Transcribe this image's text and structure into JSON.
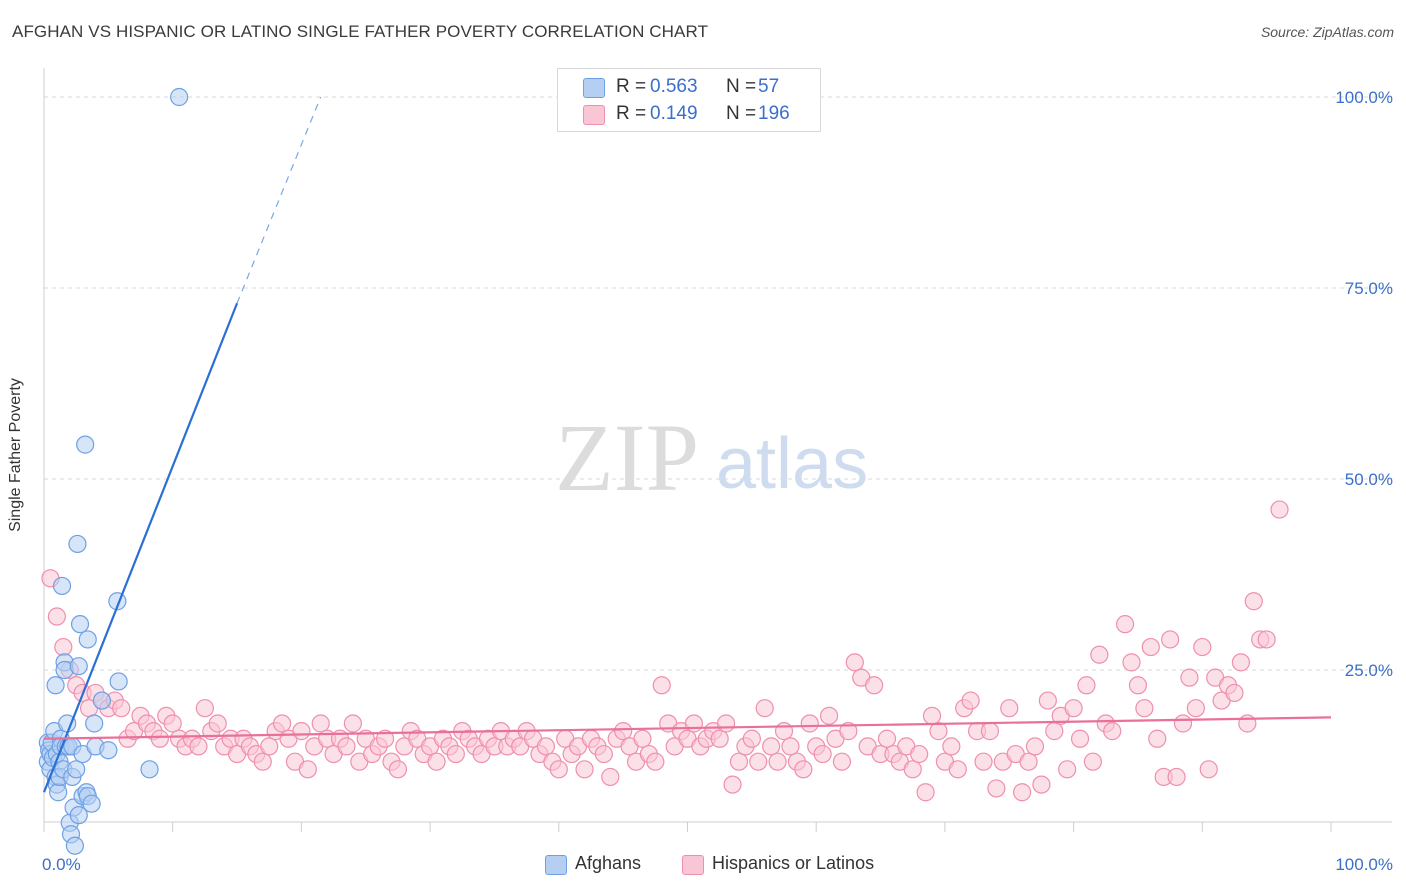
{
  "title": "AFGHAN VS HISPANIC OR LATINO SINGLE FATHER POVERTY CORRELATION CHART",
  "source": "Source: ZipAtlas.com",
  "watermark": {
    "zip": "ZIP",
    "atlas": "atlas"
  },
  "legend": {
    "r_label": "R =",
    "n_label": "N =",
    "series": [
      {
        "name": "Afghans",
        "r": "0.563",
        "n": "57",
        "color": "#6fa0e4",
        "fill": "#b5cff3"
      },
      {
        "name": "Hispanics or Latinos",
        "r": "0.149",
        "n": "196",
        "color": "#ef8fae",
        "fill": "#f9c6d6"
      }
    ]
  },
  "chart_data": {
    "type": "scatter",
    "title": "AFGHAN VS HISPANIC OR LATINO SINGLE FATHER POVERTY CORRELATION CHART",
    "xlabel": "",
    "ylabel": "Single Father Poverty",
    "xlim": [
      0,
      100
    ],
    "ylim": [
      0,
      102
    ],
    "x_tick_labels": [
      "0.0%",
      "100.0%"
    ],
    "y_ticks": [
      25,
      50,
      75,
      100
    ],
    "y_tick_labels": [
      "25.0%",
      "50.0%",
      "75.0%",
      "100.0%"
    ],
    "grid": true,
    "series": [
      {
        "name": "Afghans",
        "points": [
          [
            0.3,
            15.5
          ],
          [
            0.3,
            13
          ],
          [
            0.4,
            14.5
          ],
          [
            0.5,
            12
          ],
          [
            0.5,
            14
          ],
          [
            0.6,
            15.5
          ],
          [
            0.7,
            13.5
          ],
          [
            0.8,
            17
          ],
          [
            0.9,
            23
          ],
          [
            0.9,
            11
          ],
          [
            1.0,
            14
          ],
          [
            1.0,
            10
          ],
          [
            1.1,
            9
          ],
          [
            1.2,
            13
          ],
          [
            1.2,
            11
          ],
          [
            1.3,
            16
          ],
          [
            1.3,
            15
          ],
          [
            1.4,
            36
          ],
          [
            1.5,
            12
          ],
          [
            1.6,
            26
          ],
          [
            1.6,
            25
          ],
          [
            1.7,
            15
          ],
          [
            1.8,
            18
          ],
          [
            1.9,
            15
          ],
          [
            2.0,
            5
          ],
          [
            2.1,
            3.5
          ],
          [
            2.2,
            15
          ],
          [
            2.2,
            11
          ],
          [
            2.3,
            7
          ],
          [
            2.4,
            2
          ],
          [
            2.5,
            12
          ],
          [
            2.6,
            41.5
          ],
          [
            2.7,
            25.5
          ],
          [
            2.7,
            6
          ],
          [
            2.8,
            31
          ],
          [
            3.0,
            14
          ],
          [
            3.0,
            8.5
          ],
          [
            3.2,
            54.5
          ],
          [
            3.3,
            9
          ],
          [
            3.4,
            8.5
          ],
          [
            3.4,
            29
          ],
          [
            3.7,
            7.5
          ],
          [
            3.9,
            18
          ],
          [
            4.0,
            15
          ],
          [
            4.5,
            21
          ],
          [
            5.0,
            14.5
          ],
          [
            5.7,
            34
          ],
          [
            5.8,
            23.5
          ],
          [
            8.2,
            12
          ],
          [
            10.5,
            100
          ]
        ],
        "trend": {
          "x0": 0,
          "y0": 9,
          "x1": 15,
          "y1": 73,
          "dashed_to": [
            21.5,
            100
          ]
        }
      },
      {
        "name": "Hispanics or Latinos",
        "points": [
          [
            0.5,
            37
          ],
          [
            1,
            32
          ],
          [
            1.5,
            28
          ],
          [
            2,
            25
          ],
          [
            2.5,
            23
          ],
          [
            3,
            22
          ],
          [
            3.5,
            20
          ],
          [
            4,
            22
          ],
          [
            4.5,
            21
          ],
          [
            5,
            20
          ],
          [
            5.5,
            21
          ],
          [
            6,
            20
          ],
          [
            6.5,
            16
          ],
          [
            7,
            17
          ],
          [
            7.5,
            19
          ],
          [
            8,
            18
          ],
          [
            8.5,
            17
          ],
          [
            9,
            16
          ],
          [
            9.5,
            19
          ],
          [
            10,
            18
          ],
          [
            10.5,
            16
          ],
          [
            11,
            15
          ],
          [
            11.5,
            16
          ],
          [
            12,
            15
          ],
          [
            12.5,
            20
          ],
          [
            13,
            17
          ],
          [
            13.5,
            18
          ],
          [
            14,
            15
          ],
          [
            14.5,
            16
          ],
          [
            15,
            14
          ],
          [
            15.5,
            16
          ],
          [
            16,
            15
          ],
          [
            16.5,
            14
          ],
          [
            17,
            13
          ],
          [
            17.5,
            15
          ],
          [
            18,
            17
          ],
          [
            18.5,
            18
          ],
          [
            19,
            16
          ],
          [
            19.5,
            13
          ],
          [
            20,
            17
          ],
          [
            20.5,
            12
          ],
          [
            21,
            15
          ],
          [
            21.5,
            18
          ],
          [
            22,
            16
          ],
          [
            22.5,
            14
          ],
          [
            23,
            16
          ],
          [
            23.5,
            15
          ],
          [
            24,
            18
          ],
          [
            24.5,
            13
          ],
          [
            25,
            16
          ],
          [
            25.5,
            14
          ],
          [
            26,
            15
          ],
          [
            26.5,
            16
          ],
          [
            27,
            13
          ],
          [
            27.5,
            12
          ],
          [
            28,
            15
          ],
          [
            28.5,
            17
          ],
          [
            29,
            16
          ],
          [
            29.5,
            14
          ],
          [
            30,
            15
          ],
          [
            30.5,
            13
          ],
          [
            31,
            16
          ],
          [
            31.5,
            15
          ],
          [
            32,
            14
          ],
          [
            32.5,
            17
          ],
          [
            33,
            16
          ],
          [
            33.5,
            15
          ],
          [
            34,
            14
          ],
          [
            34.5,
            16
          ],
          [
            35,
            15
          ],
          [
            35.5,
            17
          ],
          [
            36,
            15
          ],
          [
            36.5,
            16
          ],
          [
            37,
            15
          ],
          [
            37.5,
            17
          ],
          [
            38,
            16
          ],
          [
            38.5,
            14
          ],
          [
            39,
            15
          ],
          [
            39.5,
            13
          ],
          [
            40,
            12
          ],
          [
            40.5,
            16
          ],
          [
            41,
            14
          ],
          [
            41.5,
            15
          ],
          [
            42,
            12
          ],
          [
            42.5,
            16
          ],
          [
            43,
            15
          ],
          [
            43.5,
            14
          ],
          [
            44,
            11
          ],
          [
            44.5,
            16
          ],
          [
            45,
            17
          ],
          [
            45.5,
            15
          ],
          [
            46,
            13
          ],
          [
            46.5,
            16
          ],
          [
            47,
            14
          ],
          [
            47.5,
            13
          ],
          [
            48,
            23
          ],
          [
            48.5,
            18
          ],
          [
            49,
            15
          ],
          [
            49.5,
            17
          ],
          [
            50,
            16
          ],
          [
            50.5,
            18
          ],
          [
            51,
            15
          ],
          [
            51.5,
            16
          ],
          [
            52,
            17
          ],
          [
            52.5,
            16
          ],
          [
            53,
            18
          ],
          [
            53.5,
            10
          ],
          [
            54,
            13
          ],
          [
            54.5,
            15
          ],
          [
            55,
            16
          ],
          [
            55.5,
            13
          ],
          [
            56,
            20
          ],
          [
            56.5,
            15
          ],
          [
            57,
            13
          ],
          [
            57.5,
            17
          ],
          [
            58,
            15
          ],
          [
            58.5,
            13
          ],
          [
            59,
            12
          ],
          [
            59.5,
            18
          ],
          [
            60,
            15
          ],
          [
            60.5,
            14
          ],
          [
            61,
            19
          ],
          [
            61.5,
            16
          ],
          [
            62,
            13
          ],
          [
            62.5,
            17
          ],
          [
            63,
            26
          ],
          [
            63.5,
            24
          ],
          [
            64,
            15
          ],
          [
            64.5,
            23
          ],
          [
            65,
            14
          ],
          [
            65.5,
            16
          ],
          [
            66,
            14
          ],
          [
            66.5,
            13
          ],
          [
            67,
            15
          ],
          [
            67.5,
            12
          ],
          [
            68,
            14
          ],
          [
            68.5,
            9
          ],
          [
            69,
            19
          ],
          [
            69.5,
            17
          ],
          [
            70,
            13
          ],
          [
            70.5,
            15
          ],
          [
            71,
            12
          ],
          [
            71.5,
            20
          ],
          [
            72,
            21
          ],
          [
            72.5,
            17
          ],
          [
            73,
            13
          ],
          [
            73.5,
            17
          ],
          [
            74,
            9.5
          ],
          [
            74.5,
            13
          ],
          [
            75,
            20
          ],
          [
            75.5,
            14
          ],
          [
            76,
            9
          ],
          [
            76.5,
            13
          ],
          [
            77,
            15
          ],
          [
            77.5,
            10
          ],
          [
            78,
            21
          ],
          [
            78.5,
            17
          ],
          [
            79,
            19
          ],
          [
            79.5,
            12
          ],
          [
            80,
            20
          ],
          [
            80.5,
            16
          ],
          [
            81,
            23
          ],
          [
            81.5,
            13
          ],
          [
            82,
            27
          ],
          [
            82.5,
            18
          ],
          [
            83,
            17
          ],
          [
            84,
            31
          ],
          [
            84.5,
            26
          ],
          [
            85,
            23
          ],
          [
            85.5,
            20
          ],
          [
            86,
            28
          ],
          [
            86.5,
            16
          ],
          [
            87,
            11
          ],
          [
            87.5,
            29
          ],
          [
            88,
            11
          ],
          [
            88.5,
            18
          ],
          [
            89,
            24
          ],
          [
            89.5,
            20
          ],
          [
            90,
            28
          ],
          [
            90.5,
            12
          ],
          [
            91,
            24
          ],
          [
            91.5,
            21
          ],
          [
            92,
            23
          ],
          [
            92.5,
            22
          ],
          [
            93,
            26
          ],
          [
            93.5,
            18
          ],
          [
            94,
            34
          ],
          [
            94.5,
            29
          ],
          [
            95,
            29
          ],
          [
            96,
            46
          ]
        ],
        "trend": {
          "x0": 0,
          "y0": 16,
          "x1": 100,
          "y1": 18.8
        }
      }
    ]
  }
}
